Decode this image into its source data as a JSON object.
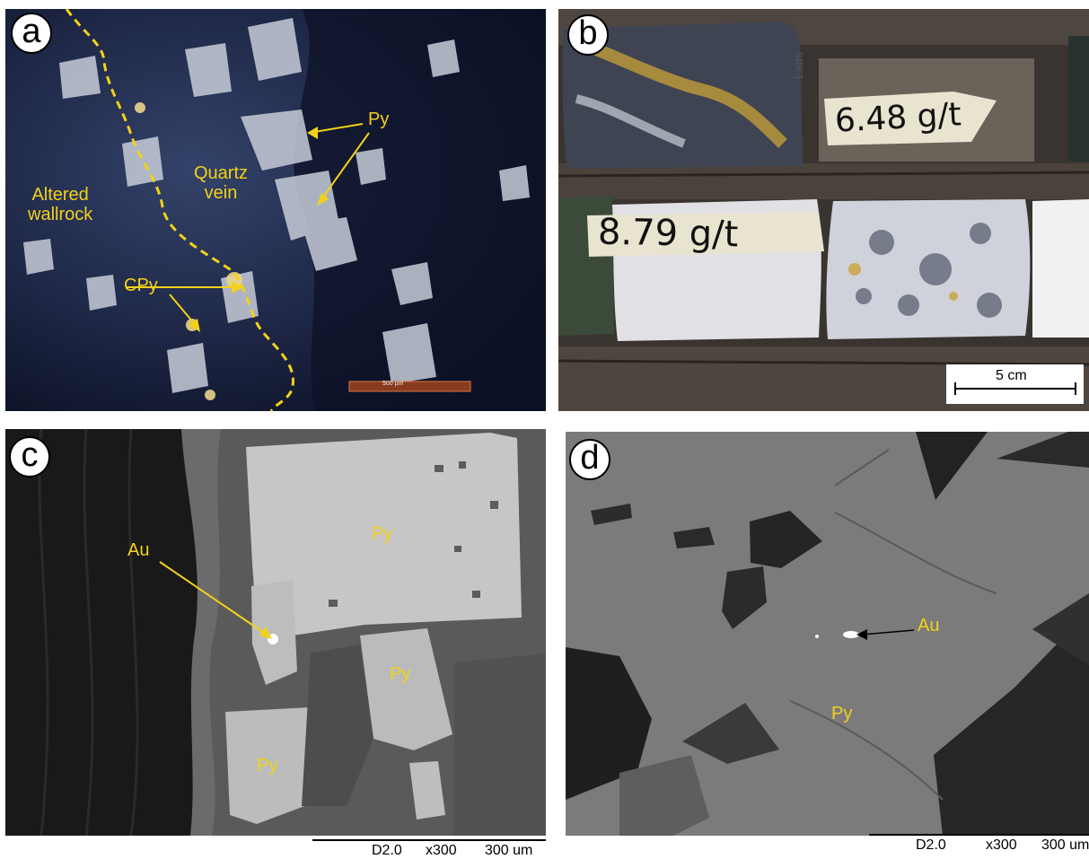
{
  "panels": {
    "a": {
      "letter": "a",
      "labels": {
        "altered": "Altered\nwallrock",
        "quartz": "Quartz\nvein",
        "py": "Py",
        "cpy": "CPy"
      },
      "scale_bar": "500 µm"
    },
    "b": {
      "letter": "b",
      "tape_top": "6.48 g/t",
      "tape_bottom": "8.79 g/t",
      "box_text": "Labs",
      "scale_bar": "5 cm"
    },
    "c": {
      "letter": "c",
      "labels": {
        "au": "Au",
        "py_main": "Py",
        "py_mid": "Py",
        "py_low": "Py"
      },
      "sem_info": {
        "detector": "D2.0",
        "magnification": "x300",
        "scale": "300 um"
      }
    },
    "d": {
      "letter": "d",
      "labels": {
        "au": "Au",
        "py": "Py"
      },
      "sem_info": {
        "detector": "D2.0",
        "magnification": "x300",
        "scale": "300 um"
      }
    }
  },
  "colors": {
    "annotation": "#f2d21a",
    "boundary": "#f2d21a"
  }
}
